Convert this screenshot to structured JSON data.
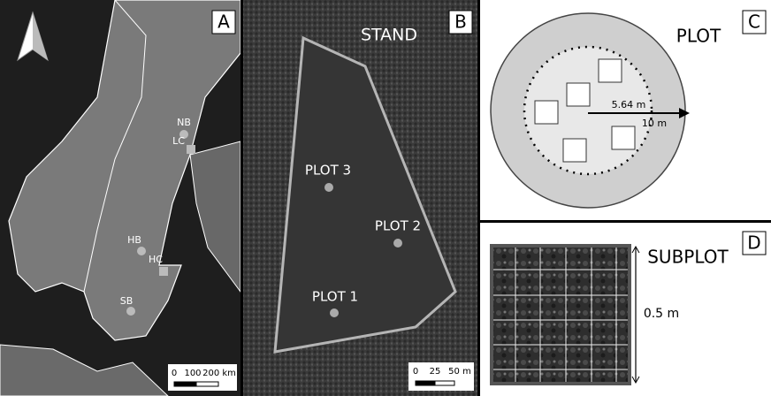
{
  "panel_a": {
    "label": "A",
    "sites": [
      "NB",
      "LC",
      "HB",
      "HC",
      "SB"
    ],
    "scale": [
      "0",
      "100",
      "200 km"
    ]
  },
  "panel_b": {
    "label": "B",
    "title": "STAND",
    "plots": [
      "PLOT 3",
      "PLOT 2",
      "PLOT 1"
    ],
    "scale": [
      "0",
      "25",
      "50 m"
    ]
  },
  "panel_c": {
    "label": "C",
    "title": "PLOT",
    "inner_radius": "5.64 m",
    "outer_radius": "10 m"
  },
  "panel_d": {
    "label": "D",
    "title": "SUBPLOT",
    "side": "0.5 m"
  }
}
